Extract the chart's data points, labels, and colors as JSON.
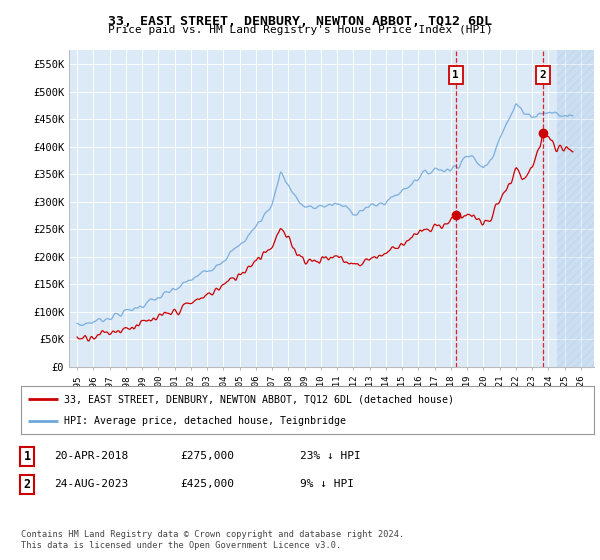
{
  "title": "33, EAST STREET, DENBURY, NEWTON ABBOT, TQ12 6DL",
  "subtitle": "Price paid vs. HM Land Registry's House Price Index (HPI)",
  "legend_line1": "33, EAST STREET, DENBURY, NEWTON ABBOT, TQ12 6DL (detached house)",
  "legend_line2": "HPI: Average price, detached house, Teignbridge",
  "annotation1_date": "20-APR-2018",
  "annotation1_price": "£275,000",
  "annotation1_hpi": "23% ↓ HPI",
  "annotation2_date": "24-AUG-2023",
  "annotation2_price": "£425,000",
  "annotation2_hpi": "9% ↓ HPI",
  "footnote": "Contains HM Land Registry data © Crown copyright and database right 2024.\nThis data is licensed under the Open Government Licence v3.0.",
  "hpi_color": "#6fa8dc",
  "price_color": "#cc0000",
  "marker1_x": 2018.3,
  "marker1_y": 275000,
  "marker2_x": 2023.65,
  "marker2_y": 425000,
  "vline1_x": 2018.3,
  "vline2_x": 2023.65,
  "hatch_start_x": 2024.5,
  "ylim": [
    0,
    575000
  ],
  "xlim": [
    1994.5,
    2026.8
  ],
  "yticks": [
    0,
    50000,
    100000,
    150000,
    200000,
    250000,
    300000,
    350000,
    400000,
    450000,
    500000,
    550000
  ],
  "xticks": [
    1995,
    1996,
    1997,
    1998,
    1999,
    2000,
    2001,
    2002,
    2003,
    2004,
    2005,
    2006,
    2007,
    2008,
    2009,
    2010,
    2011,
    2012,
    2013,
    2014,
    2015,
    2016,
    2017,
    2018,
    2019,
    2020,
    2021,
    2022,
    2023,
    2024,
    2025,
    2026
  ],
  "background_color": "#dce9f7",
  "hatch_color": "#c5d8ef"
}
